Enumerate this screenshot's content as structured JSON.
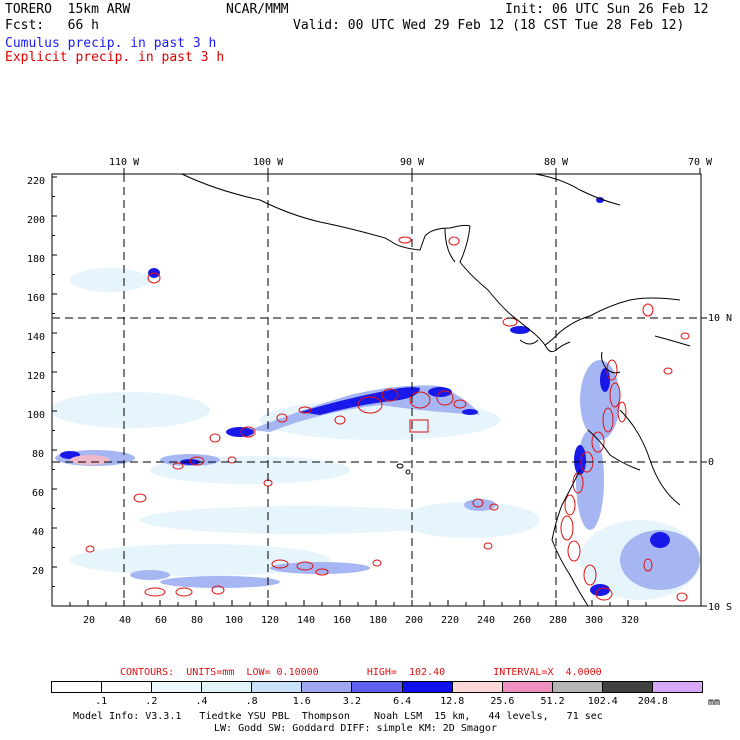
{
  "header": {
    "line1_left": "TORERO  15km ARW",
    "line1_mid": "NCAR/MMM",
    "line1_right": "Init: 06 UTC Sun 26 Feb 12",
    "line2_left": "Fcst:   66 h",
    "line2_right": "Valid: 00 UTC Wed 29 Feb 12 (18 CST Tue 28 Feb 12)",
    "legend_blue": "Cumulus precip. in past 3 h",
    "legend_red": "Explicit precip. in past 3 h"
  },
  "colors": {
    "legend_blue": "#1a1aff",
    "legend_red": "#e00000",
    "contour_red": "#e01010"
  },
  "axes": {
    "top_lon_labels": [
      "110 W",
      "100 W",
      "90 W",
      "80 W",
      "70 W"
    ],
    "right_lat_labels": [
      "10 N",
      "0",
      "10 S"
    ],
    "left_ticks": [
      "220",
      "200",
      "180",
      "160",
      "140",
      "120",
      "100",
      "80",
      "60",
      "40",
      "20"
    ],
    "bottom_ticks": [
      "20",
      "40",
      "60",
      "80",
      "100",
      "120",
      "140",
      "160",
      "180",
      "200",
      "220",
      "240",
      "260",
      "280",
      "300",
      "320"
    ]
  },
  "contour_info": {
    "label": "CONTOURS:  UNITS=mm  LOW= 0.10000        HIGH=  102.40        INTERVAL=X  4.0000"
  },
  "colorbar": {
    "labels": [
      ".1",
      ".2",
      ".4",
      ".8",
      "1.6",
      "3.2",
      "6.4",
      "12.8",
      "25.6",
      "51.2",
      "102.4",
      "204.8"
    ],
    "unit": "mm",
    "colors": [
      "#ffffff",
      "#ffffff",
      "#eef8ff",
      "#e0f5f8",
      "#c8e0f8",
      "#a0a8f0",
      "#6060f0",
      "#1010ee",
      "#ffd8d8",
      "#f090c0",
      "#b4b4b4",
      "#404040",
      "#d8a8f8"
    ]
  },
  "footer": {
    "line1": "Model Info: V3.3.1   Tiedtke YSU PBL  Thompson    Noah LSM  15 km,   44 levels,   71 sec",
    "line2": "LW: Godd SW: Goddard DIFF: simple KM: 2D Smagor"
  }
}
